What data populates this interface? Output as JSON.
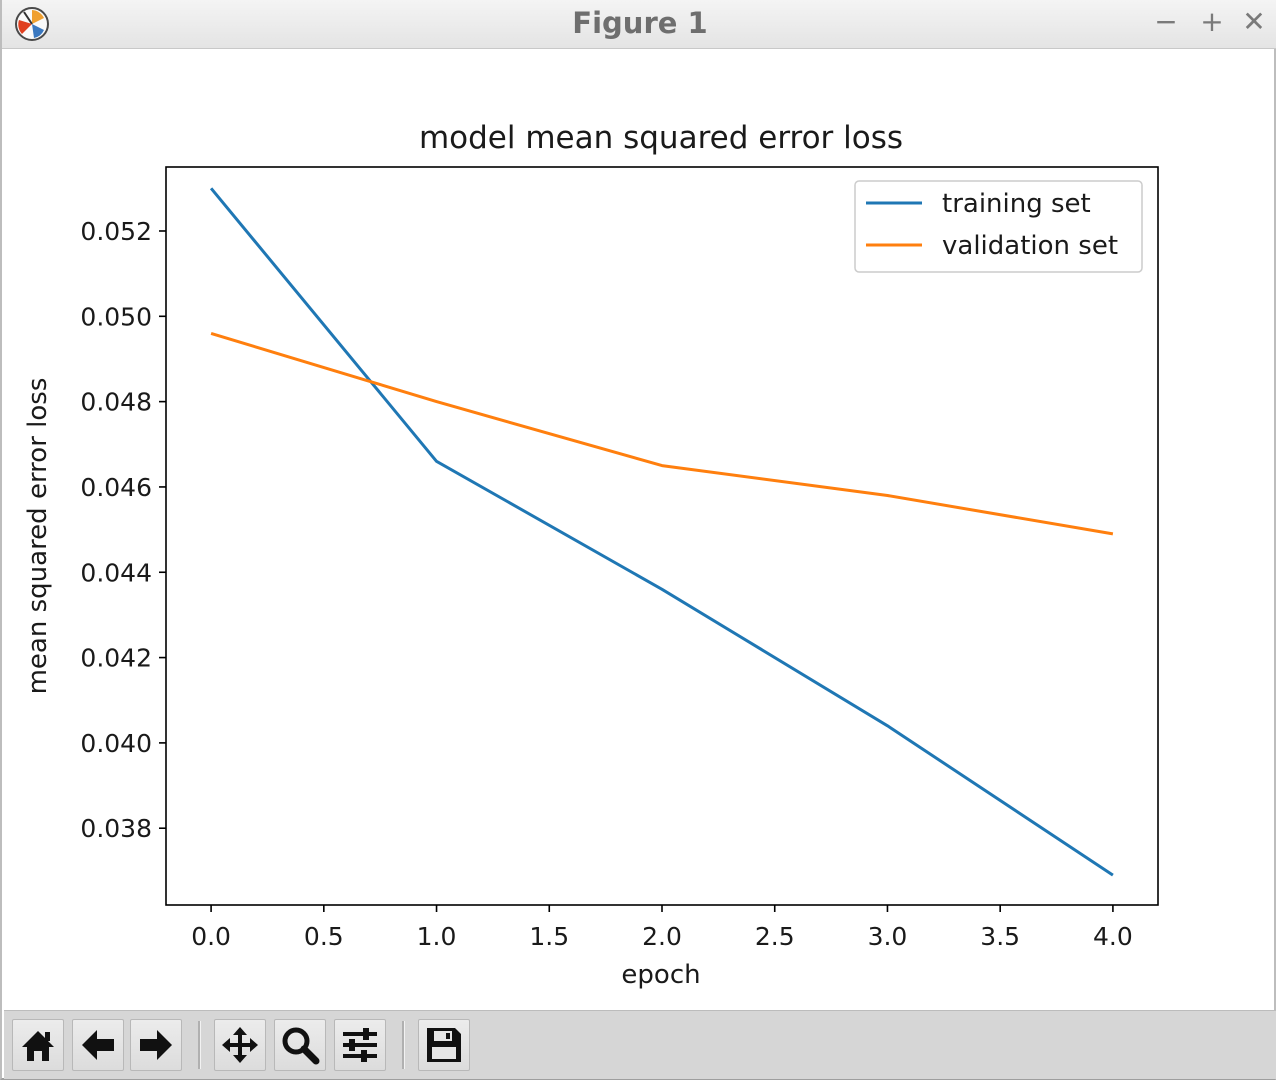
{
  "window": {
    "title": "Figure 1",
    "minimize_symbol": "−",
    "maximize_symbol": "+",
    "close_symbol": "✕",
    "app_icon": "matplotlib-icon"
  },
  "toolbar": {
    "buttons": [
      {
        "name": "home-button",
        "icon": "home-icon"
      },
      {
        "name": "back-button",
        "icon": "arrow-left-icon"
      },
      {
        "name": "forward-button",
        "icon": "arrow-right-icon"
      },
      {
        "name": "pan-button",
        "icon": "move-icon"
      },
      {
        "name": "zoom-button",
        "icon": "magnifier-icon"
      },
      {
        "name": "configure-subplots-button",
        "icon": "sliders-icon"
      },
      {
        "name": "save-button",
        "icon": "floppy-disk-icon"
      }
    ]
  },
  "chart_data": {
    "type": "line",
    "title": "model mean squared error loss",
    "xlabel": "epoch",
    "ylabel": "mean squared error loss",
    "x": [
      0,
      1,
      2,
      3,
      4
    ],
    "xticks": [
      "0.0",
      "0.5",
      "1.0",
      "1.5",
      "2.0",
      "2.5",
      "3.0",
      "3.5",
      "4.0"
    ],
    "xtick_values": [
      0,
      0.5,
      1,
      1.5,
      2,
      2.5,
      3,
      3.5,
      4
    ],
    "yticks": [
      "0.038",
      "0.040",
      "0.042",
      "0.044",
      "0.046",
      "0.048",
      "0.050",
      "0.052"
    ],
    "ytick_values": [
      0.038,
      0.04,
      0.042,
      0.044,
      0.046,
      0.048,
      0.05,
      0.052
    ],
    "xlim": [
      -0.2,
      4.2
    ],
    "ylim": [
      0.0362,
      0.0535
    ],
    "grid": false,
    "legend_position": "upper right",
    "series": [
      {
        "name": "training set",
        "color": "#1f77b4",
        "values": [
          0.053,
          0.0466,
          0.0436,
          0.0404,
          0.0369
        ]
      },
      {
        "name": "validation set",
        "color": "#ff7f0e",
        "values": [
          0.0496,
          0.048,
          0.0465,
          0.0458,
          0.0449
        ]
      }
    ]
  }
}
